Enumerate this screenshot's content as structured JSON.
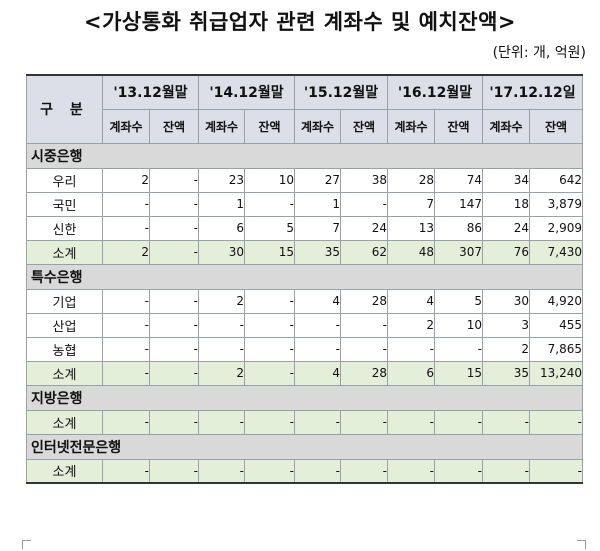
{
  "title": "<가상통화 취급업자 관련 계좌수 및 예치잔액>",
  "unit": "(단위: 개, 억원)",
  "header": {
    "category": "구 분",
    "periods": [
      "'13.12월말",
      "'14.12월말",
      "'15.12월말",
      "'16.12월말",
      "'17.12.12일"
    ],
    "sub_accounts": "계좌수",
    "sub_balance": "잔액"
  },
  "sections": [
    {
      "name": "시중은행",
      "rows": [
        {
          "label": "우리",
          "values": [
            "2",
            "-",
            "23",
            "10",
            "27",
            "38",
            "28",
            "74",
            "34",
            "642"
          ]
        },
        {
          "label": "국민",
          "values": [
            "-",
            "-",
            "1",
            "-",
            "1",
            "-",
            "7",
            "147",
            "18",
            "3,879"
          ]
        },
        {
          "label": "신한",
          "values": [
            "-",
            "-",
            "6",
            "5",
            "7",
            "24",
            "13",
            "86",
            "24",
            "2,909"
          ]
        }
      ],
      "subtotal": {
        "label": "소계",
        "values": [
          "2",
          "-",
          "30",
          "15",
          "35",
          "62",
          "48",
          "307",
          "76",
          "7,430"
        ]
      }
    },
    {
      "name": "특수은행",
      "rows": [
        {
          "label": "기업",
          "values": [
            "-",
            "-",
            "2",
            "-",
            "4",
            "28",
            "4",
            "5",
            "30",
            "4,920"
          ]
        },
        {
          "label": "산업",
          "values": [
            "-",
            "-",
            "-",
            "-",
            "-",
            "-",
            "2",
            "10",
            "3",
            "455"
          ]
        },
        {
          "label": "농협",
          "values": [
            "-",
            "-",
            "-",
            "-",
            "-",
            "-",
            "-",
            "-",
            "2",
            "7,865"
          ]
        }
      ],
      "subtotal": {
        "label": "소계",
        "values": [
          "-",
          "-",
          "2",
          "-",
          "4",
          "28",
          "6",
          "15",
          "35",
          "13,240"
        ]
      }
    },
    {
      "name": "지방은행",
      "rows": [],
      "subtotal": {
        "label": "소계",
        "values": [
          "-",
          "-",
          "-",
          "-",
          "-",
          "-",
          "-",
          "-",
          "-",
          "-"
        ]
      }
    },
    {
      "name": "인터넷전문은행",
      "rows": [],
      "subtotal": {
        "label": "소계",
        "values": [
          "-",
          "-",
          "-",
          "-",
          "-",
          "-",
          "-",
          "-",
          "-",
          "-"
        ]
      }
    }
  ],
  "colors": {
    "header_bg": "#dcdee8",
    "section_bg": "#d9d9d9",
    "subtotal_bg": "#e3efd9"
  }
}
